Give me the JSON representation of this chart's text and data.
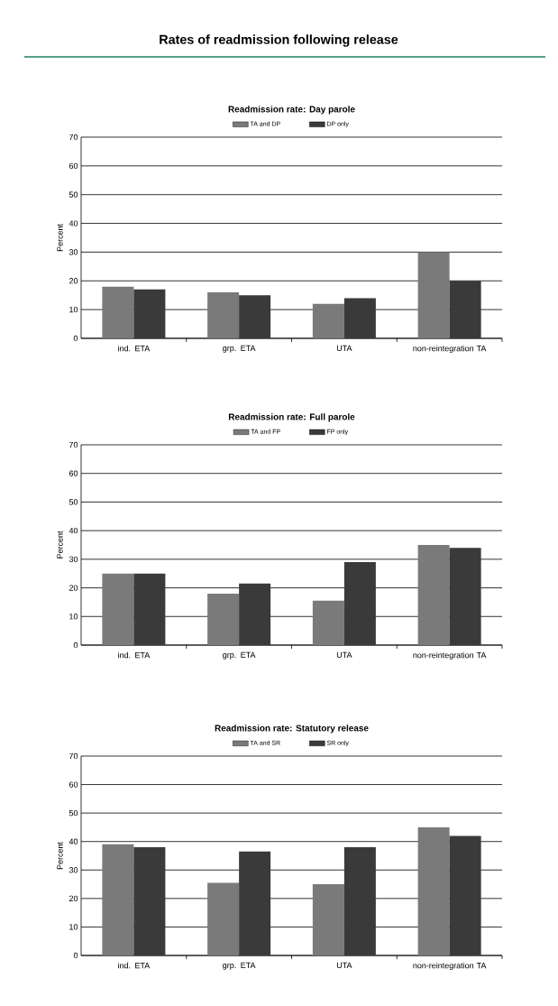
{
  "chart_data": [
    {
      "type": "bar",
      "title": "Rates of readmission following release",
      "subtitle": "Readmission rate: Day parole",
      "categories": [
        "ind. ETA",
        "grp. ETA",
        "UTA",
        "non-reintegration TA"
      ],
      "series": [
        {
          "name": "TA and DP",
          "color": "#7a7a7a",
          "values": [
            18,
            16,
            12,
            30
          ]
        },
        {
          "name": "DP only",
          "color": "#3a3a3a",
          "values": [
            17,
            15,
            14,
            20
          ]
        }
      ],
      "ylabel": "Percent",
      "ylim": [
        0,
        70
      ],
      "yticks": [
        0,
        10,
        20,
        30,
        40,
        50,
        60,
        70
      ],
      "grid": "y",
      "legend": "top"
    },
    {
      "type": "bar",
      "title": "Readmission rate: Full parole",
      "categories": [
        "ind. ETA",
        "grp. ETA",
        "UTA",
        "non-reintegration TA"
      ],
      "series": [
        {
          "name": "TA and FP",
          "color": "#7a7a7a",
          "values": [
            25,
            18,
            15.5,
            35
          ]
        },
        {
          "name": "FP only",
          "color": "#3a3a3a",
          "values": [
            25,
            21.5,
            29,
            34
          ]
        }
      ],
      "ylabel": "Percent",
      "ylim": [
        0,
        70
      ],
      "yticks": [
        0,
        10,
        20,
        30,
        40,
        50,
        60,
        70
      ],
      "grid": "y",
      "legend": "top"
    },
    {
      "type": "bar",
      "title": "Readmission rate: Statutory release",
      "categories": [
        "ind. ETA",
        "grp. ETA",
        "UTA",
        "non-reintegration TA"
      ],
      "series": [
        {
          "name": "TA and SR",
          "color": "#7a7a7a",
          "values": [
            39,
            25.5,
            25,
            45
          ]
        },
        {
          "name": "SR only",
          "color": "#3a3a3a",
          "values": [
            38,
            36.5,
            38,
            42
          ]
        }
      ],
      "ylabel": "Percent",
      "ylim": [
        0,
        70
      ],
      "yticks": [
        0,
        10,
        20,
        30,
        40,
        50,
        60,
        70
      ],
      "grid": "y",
      "legend": "top"
    }
  ]
}
